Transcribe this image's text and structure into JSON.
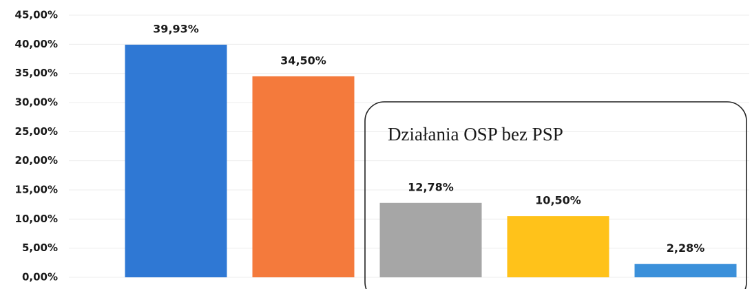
{
  "chart_data": {
    "type": "bar",
    "categories": [
      null,
      null,
      null,
      null,
      null
    ],
    "values": [
      39.93,
      34.5,
      12.78,
      10.5,
      2.28
    ],
    "value_labels": [
      "39,93%",
      "34,50%",
      "12,78%",
      "10,50%",
      "2,28%"
    ],
    "colors": [
      "#2f78d4",
      "#f47a3c",
      "#a6a6a6",
      "#ffc21a",
      "#3b90da"
    ],
    "ylim": [
      0,
      45
    ],
    "yticks": [
      {
        "value": 0,
        "label": "0,00%"
      },
      {
        "value": 5,
        "label": "5,00%"
      },
      {
        "value": 10,
        "label": "10,00%"
      },
      {
        "value": 15,
        "label": "15,00%"
      },
      {
        "value": 20,
        "label": "20,00%"
      },
      {
        "value": 25,
        "label": "25,00%"
      },
      {
        "value": 30,
        "label": "30,00%"
      },
      {
        "value": 35,
        "label": "35,00%"
      },
      {
        "value": 40,
        "label": "40,00%"
      },
      {
        "value": 45,
        "label": "45,00%"
      }
    ],
    "grid": true,
    "annotation": "Działania OSP bez PSP"
  }
}
